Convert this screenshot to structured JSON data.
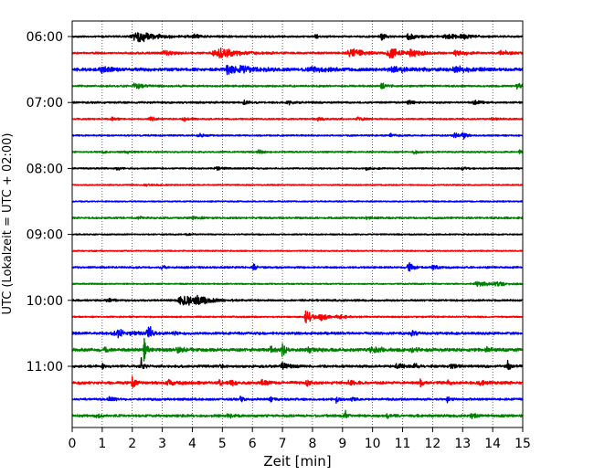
{
  "chart_data": {
    "type": "line",
    "xlabel": "Zeit  [min]",
    "ylabel": "UTC (Lokalzeit = UTC + 02:00)",
    "xlim": [
      0,
      15
    ],
    "x_ticks": [
      "0",
      "1",
      "2",
      "3",
      "4",
      "5",
      "6",
      "7",
      "8",
      "9",
      "10",
      "11",
      "12",
      "13",
      "14",
      "15"
    ],
    "grid": "vertical dotted",
    "y_ticks": [
      {
        "label": "06:00",
        "row": 0
      },
      {
        "label": "07:00",
        "row": 4
      },
      {
        "label": "08:00",
        "row": 8
      },
      {
        "label": "09:00",
        "row": 12
      },
      {
        "label": "10:00",
        "row": 16
      },
      {
        "label": "11:00",
        "row": 20
      }
    ],
    "trace_minutes": 15,
    "colors": [
      "#000000",
      "#ff0000",
      "#0000ff",
      "#008000"
    ],
    "traces": [
      {
        "index": 0,
        "color": "#000000",
        "base_amplitude": 0.15,
        "events": [
          [
            2.2,
            0.9,
            0.35
          ],
          [
            4.05,
            0.7,
            0.06
          ],
          [
            8.1,
            0.35,
            0.05
          ],
          [
            10.3,
            0.6,
            0.08
          ],
          [
            11.2,
            0.55,
            0.15
          ],
          [
            12.5,
            0.4,
            0.25
          ],
          [
            13.0,
            0.35,
            0.12
          ]
        ]
      },
      {
        "index": 1,
        "color": "#ff0000",
        "base_amplitude": 0.15,
        "events": [
          [
            3.1,
            0.35,
            0.2
          ],
          [
            4.9,
            0.75,
            0.4
          ],
          [
            9.3,
            0.7,
            0.25
          ],
          [
            10.6,
            0.9,
            0.2
          ],
          [
            11.3,
            0.5,
            0.2
          ],
          [
            12.8,
            0.4,
            0.2
          ],
          [
            14.3,
            0.35,
            0.2
          ]
        ]
      },
      {
        "index": 2,
        "color": "#0000ff",
        "base_amplitude": 0.25,
        "events": [
          [
            1.0,
            0.5,
            0.15
          ],
          [
            5.2,
            0.8,
            0.15
          ],
          [
            5.7,
            0.55,
            0.25
          ],
          [
            8.0,
            0.4,
            0.3
          ],
          [
            10.7,
            0.5,
            0.3
          ],
          [
            12.8,
            0.4,
            0.3
          ]
        ]
      },
      {
        "index": 3,
        "color": "#008000",
        "base_amplitude": 0.15,
        "events": [
          [
            2.1,
            0.45,
            0.15
          ],
          [
            10.3,
            0.45,
            0.1
          ],
          [
            14.8,
            0.45,
            0.1
          ]
        ]
      },
      {
        "index": 4,
        "color": "#000000",
        "base_amplitude": 0.15,
        "events": [
          [
            5.7,
            0.45,
            0.06
          ],
          [
            7.2,
            0.3,
            0.1
          ],
          [
            11.2,
            0.35,
            0.1
          ],
          [
            13.4,
            0.3,
            0.1
          ]
        ]
      },
      {
        "index": 5,
        "color": "#ff0000",
        "base_amplitude": 0.12,
        "events": [
          [
            1.3,
            0.3,
            0.1
          ],
          [
            2.6,
            0.35,
            0.1
          ],
          [
            3.7,
            0.5,
            0.08
          ],
          [
            8.2,
            0.3,
            0.1
          ],
          [
            9.5,
            0.3,
            0.1
          ],
          [
            14.0,
            0.3,
            0.1
          ]
        ]
      },
      {
        "index": 6,
        "color": "#0000ff",
        "base_amplitude": 0.12,
        "events": [
          [
            4.2,
            0.3,
            0.1
          ],
          [
            10.6,
            0.3,
            0.1
          ],
          [
            12.7,
            0.45,
            0.1
          ],
          [
            13.0,
            0.9,
            0.05
          ]
        ]
      },
      {
        "index": 7,
        "color": "#008000",
        "base_amplitude": 0.12,
        "events": [
          [
            1.0,
            0.3,
            0.05
          ],
          [
            1.8,
            0.3,
            0.1
          ],
          [
            6.2,
            0.3,
            0.1
          ],
          [
            11.4,
            0.3,
            0.1
          ],
          [
            14.9,
            0.3,
            0.05
          ]
        ]
      },
      {
        "index": 8,
        "color": "#000000",
        "base_amplitude": 0.12,
        "events": [
          [
            1.5,
            0.35,
            0.06
          ],
          [
            4.8,
            0.3,
            0.1
          ],
          [
            9.8,
            0.25,
            0.1
          ],
          [
            13.0,
            0.35,
            0.06
          ]
        ]
      },
      {
        "index": 9,
        "color": "#ff0000",
        "base_amplitude": 0.1,
        "events": [
          [
            2.5,
            0.15,
            0.2
          ]
        ]
      },
      {
        "index": 10,
        "color": "#0000ff",
        "base_amplitude": 0.1,
        "events": []
      },
      {
        "index": 11,
        "color": "#008000",
        "base_amplitude": 0.15,
        "events": [
          [
            2.2,
            0.2,
            0.1
          ],
          [
            4.0,
            0.2,
            0.1
          ],
          [
            9.8,
            0.2,
            0.1
          ]
        ]
      },
      {
        "index": 12,
        "color": "#000000",
        "base_amplitude": 0.1,
        "events": [
          [
            3.8,
            0.2,
            0.1
          ]
        ]
      },
      {
        "index": 13,
        "color": "#ff0000",
        "base_amplitude": 0.1,
        "events": []
      },
      {
        "index": 14,
        "color": "#0000ff",
        "base_amplitude": 0.15,
        "events": [
          [
            3.0,
            0.35,
            0.06
          ],
          [
            6.0,
            0.85,
            0.05
          ],
          [
            11.2,
            0.85,
            0.08
          ],
          [
            12.0,
            0.3,
            0.1
          ]
        ]
      },
      {
        "index": 15,
        "color": "#008000",
        "base_amplitude": 0.1,
        "events": [
          [
            13.5,
            0.45,
            0.25
          ],
          [
            14.1,
            0.4,
            0.15
          ]
        ]
      },
      {
        "index": 16,
        "color": "#000000",
        "base_amplitude": 0.15,
        "events": [
          [
            3.7,
            0.95,
            0.3
          ],
          [
            4.2,
            0.6,
            0.15
          ],
          [
            1.2,
            0.25,
            0.1
          ]
        ]
      },
      {
        "index": 17,
        "color": "#ff0000",
        "base_amplitude": 0.12,
        "events": [
          [
            7.8,
            1.3,
            0.1
          ],
          [
            8.3,
            0.5,
            0.15
          ],
          [
            8.8,
            0.35,
            0.15
          ]
        ]
      },
      {
        "index": 18,
        "color": "#0000ff",
        "base_amplitude": 0.2,
        "events": [
          [
            1.5,
            0.6,
            0.25
          ],
          [
            2.5,
            1.6,
            0.05
          ],
          [
            2.6,
            0.7,
            0.05
          ],
          [
            3.4,
            0.35,
            0.06
          ],
          [
            11.3,
            0.6,
            0.06
          ]
        ]
      },
      {
        "index": 19,
        "color": "#008000",
        "base_amplitude": 0.25,
        "events": [
          [
            1.1,
            0.5,
            0.04
          ],
          [
            2.4,
            1.8,
            0.05
          ],
          [
            3.5,
            0.35,
            0.15
          ],
          [
            6.6,
            0.5,
            0.08
          ],
          [
            7.0,
            1.2,
            0.05
          ],
          [
            7.9,
            0.35,
            0.15
          ],
          [
            10.0,
            0.45,
            0.2
          ],
          [
            11.3,
            0.35,
            0.15
          ],
          [
            13.8,
            0.35,
            0.1
          ]
        ]
      },
      {
        "index": 20,
        "color": "#000000",
        "base_amplitude": 0.2,
        "events": [
          [
            1.0,
            0.9,
            0.03
          ],
          [
            2.3,
            1.2,
            0.04
          ],
          [
            4.9,
            0.5,
            0.05
          ],
          [
            7.0,
            0.6,
            0.1
          ],
          [
            10.8,
            0.8,
            0.08
          ],
          [
            11.4,
            0.4,
            0.1
          ],
          [
            12.6,
            0.35,
            0.1
          ],
          [
            14.5,
            0.9,
            0.05
          ]
        ]
      },
      {
        "index": 21,
        "color": "#ff0000",
        "base_amplitude": 0.22,
        "events": [
          [
            2.0,
            1.0,
            0.05
          ],
          [
            3.2,
            0.4,
            0.15
          ],
          [
            4.9,
            1.0,
            0.03
          ],
          [
            5.3,
            0.4,
            0.1
          ],
          [
            6.3,
            0.45,
            0.1
          ],
          [
            7.8,
            0.55,
            0.05
          ],
          [
            9.2,
            0.4,
            0.1
          ],
          [
            11.6,
            0.55,
            0.05
          ],
          [
            12.5,
            0.4,
            0.1
          ],
          [
            13.6,
            0.35,
            0.1
          ]
        ]
      },
      {
        "index": 22,
        "color": "#0000ff",
        "base_amplitude": 0.18,
        "events": [
          [
            1.2,
            0.3,
            0.1
          ],
          [
            5.6,
            0.45,
            0.05
          ],
          [
            6.6,
            0.4,
            0.05
          ],
          [
            8.8,
            0.8,
            0.03
          ],
          [
            9.3,
            0.5,
            0.05
          ],
          [
            12.5,
            0.55,
            0.04
          ]
        ]
      },
      {
        "index": 23,
        "color": "#008000",
        "base_amplitude": 0.2,
        "events": [
          [
            0.8,
            0.3,
            0.1
          ],
          [
            5.2,
            0.3,
            0.1
          ],
          [
            9.1,
            0.7,
            0.06
          ],
          [
            10.5,
            0.3,
            0.1
          ],
          [
            13.3,
            0.3,
            0.1
          ]
        ]
      }
    ]
  }
}
